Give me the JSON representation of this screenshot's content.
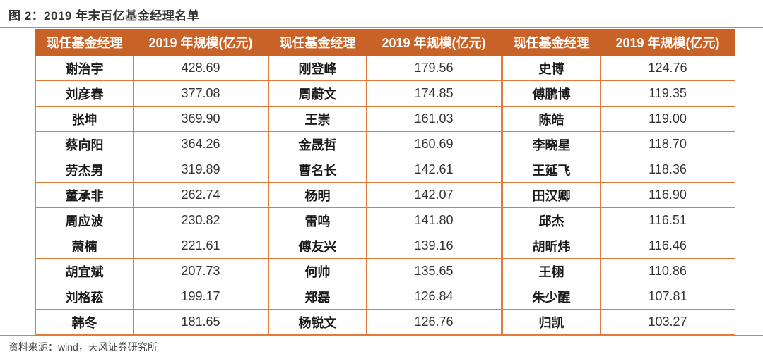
{
  "figure": {
    "title": "图 2：2019 年末百亿基金经理名单",
    "source": "资料来源：wind，天风证券研究所"
  },
  "tables": [
    {
      "headers": [
        "现任基金经理",
        "2019 年规模(亿元)"
      ],
      "rows": [
        [
          "谢治宇",
          "428.69"
        ],
        [
          "刘彦春",
          "377.08"
        ],
        [
          "张坤",
          "369.90"
        ],
        [
          "蔡向阳",
          "364.26"
        ],
        [
          "劳杰男",
          "319.89"
        ],
        [
          "董承非",
          "262.74"
        ],
        [
          "周应波",
          "230.82"
        ],
        [
          "萧楠",
          "221.61"
        ],
        [
          "胡宜斌",
          "207.73"
        ],
        [
          "刘格菘",
          "199.17"
        ],
        [
          "韩冬",
          "181.65"
        ]
      ]
    },
    {
      "headers": [
        "现任基金经理",
        "2019 年规模(亿元)"
      ],
      "rows": [
        [
          "刚登峰",
          "179.56"
        ],
        [
          "周蔚文",
          "174.85"
        ],
        [
          "王崇",
          "161.03"
        ],
        [
          "金晟哲",
          "160.69"
        ],
        [
          "曹名长",
          "142.61"
        ],
        [
          "杨明",
          "142.07"
        ],
        [
          "雷鸣",
          "141.80"
        ],
        [
          "傅友兴",
          "139.16"
        ],
        [
          "何帅",
          "135.65"
        ],
        [
          "郑磊",
          "126.84"
        ],
        [
          "杨锐文",
          "126.76"
        ]
      ]
    },
    {
      "headers": [
        "现任基金经理",
        "2019 年规模(亿元)"
      ],
      "rows": [
        [
          "史博",
          "124.76"
        ],
        [
          "傅鹏博",
          "119.35"
        ],
        [
          "陈皓",
          "119.00"
        ],
        [
          "李晓星",
          "118.70"
        ],
        [
          "王延飞",
          "118.36"
        ],
        [
          "田汉卿",
          "116.90"
        ],
        [
          "邱杰",
          "116.51"
        ],
        [
          "胡昕炜",
          "116.46"
        ],
        [
          "王栩",
          "110.86"
        ],
        [
          "朱少醒",
          "107.81"
        ],
        [
          "归凯",
          "103.27"
        ]
      ]
    }
  ],
  "colors": {
    "header_bg": "#c96226",
    "border": "#e07b3a",
    "rule": "#d9823d"
  }
}
